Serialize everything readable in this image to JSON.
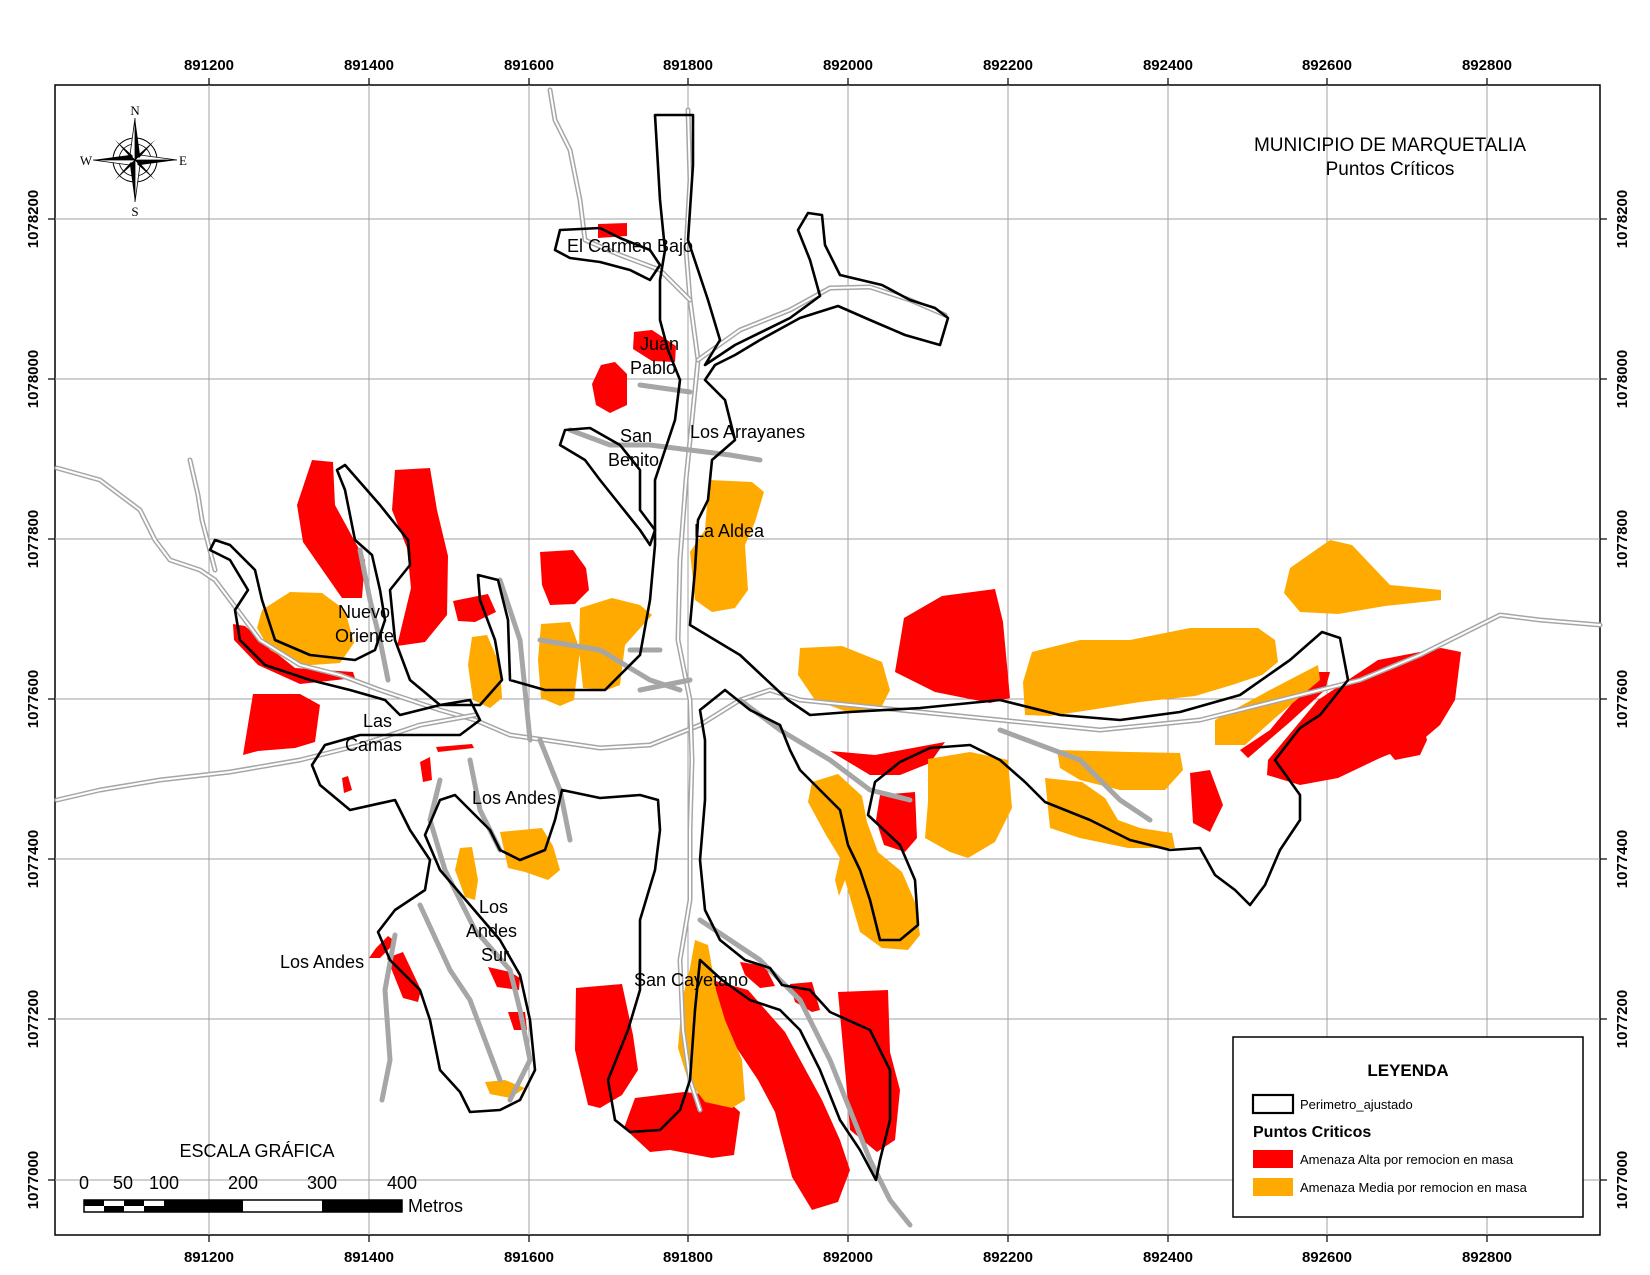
{
  "title": {
    "line1": "MUNICIPIO DE MARQUETALIA",
    "line2": "Puntos Críticos"
  },
  "x_ticks": [
    "891200",
    "891400",
    "891600",
    "891800",
    "892000",
    "892200",
    "892400",
    "892600",
    "892800"
  ],
  "y_ticks": [
    "1078200",
    "1078000",
    "1077800",
    "1077600",
    "1077400",
    "1077200",
    "1077000"
  ],
  "compass": {
    "n": "N",
    "s": "S",
    "e": "E",
    "w": "W"
  },
  "places": {
    "el_carmen_bajo": "El Carmen Bajo",
    "juan_pablo_1": "Juan",
    "juan_pablo_2": "Pablo",
    "san_benito_1": "San",
    "san_benito_2": "Benito",
    "los_arrayanes": "Los Arrayanes",
    "la_aldea": "La Aldea",
    "nuevo_oriente_1": "Nuevo",
    "nuevo_oriente_2": "Oriente",
    "las_camas_1": "Las",
    "las_camas_2": "Camas",
    "los_andes_north": "Los Andes",
    "los_andes_sur_1": "Los",
    "los_andes_sur_2": "Andes",
    "los_andes_sur_3": "Sur",
    "los_andes_west": "Los Andes",
    "san_cayetano": "San Cayetano"
  },
  "scale": {
    "title": "ESCALA GRÁFICA",
    "labels": [
      "0",
      "50",
      "100",
      "200",
      "300",
      "400"
    ],
    "unit": "Metros"
  },
  "legend": {
    "title": "LEYENDA",
    "perimeter": "Perimetro_ajustado",
    "section": "Puntos Criticos",
    "high": "Amenaza Alta por remocion en masa",
    "medium": "Amenaza Media por remocion en masa"
  },
  "colors": {
    "high": "#ff0000",
    "medium": "#ffaa00",
    "road": "#a6a6a6",
    "perimeter": "#000000",
    "grid": "#a0a0a0"
  }
}
